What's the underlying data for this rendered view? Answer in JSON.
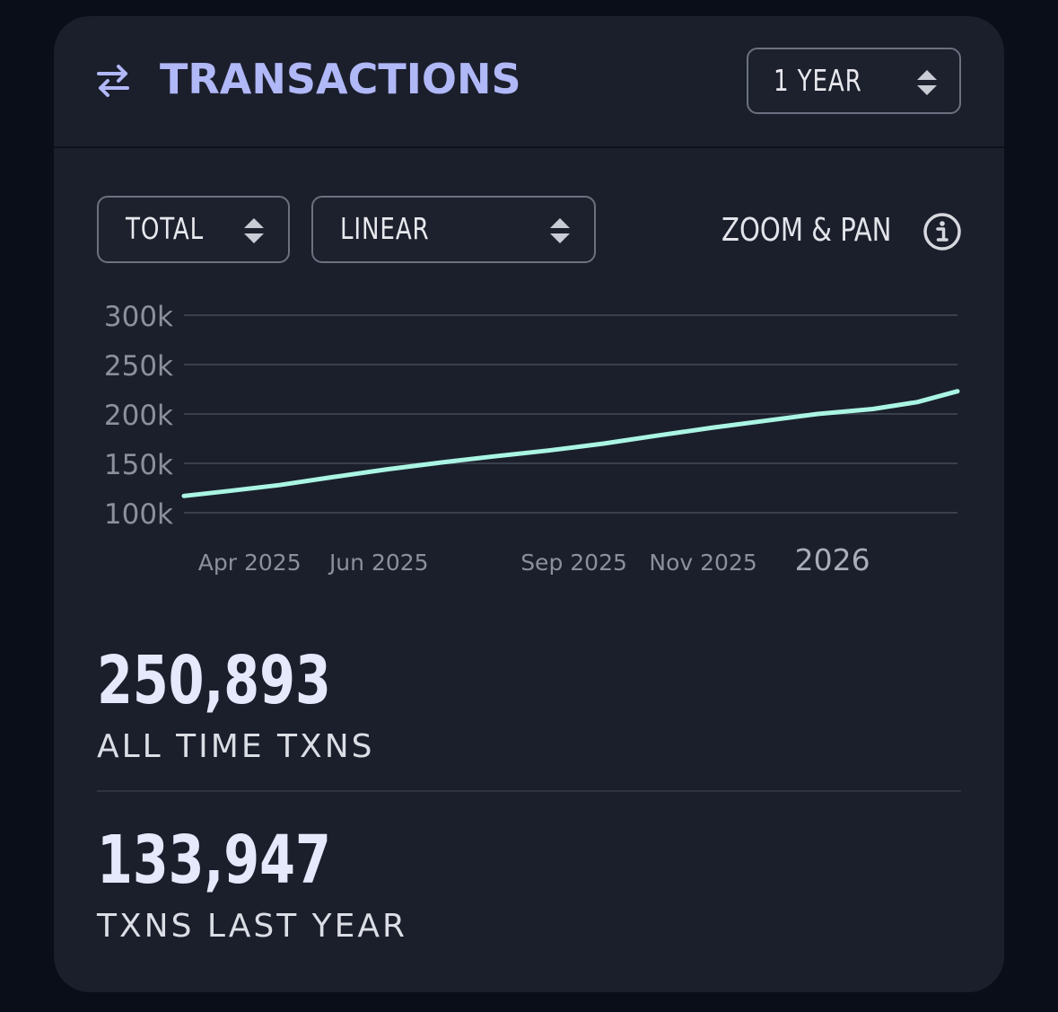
{
  "header": {
    "title": "TRANSACTIONS",
    "range_select": "1 YEAR"
  },
  "controls": {
    "mode_select": "TOTAL",
    "scale_select": "LINEAR",
    "zoom_label": "ZOOM & PAN"
  },
  "colors": {
    "card_bg": "#1b1f2c",
    "accent": "#b1b8f7",
    "line": "#aaf5e4"
  },
  "icons": {
    "title": "swap-arrows-icon",
    "select": "sort-updown-icon",
    "info": "info-icon"
  },
  "chart_data": {
    "type": "line",
    "y_tick_labels": [
      "300k",
      "250k",
      "200k",
      "150k",
      "100k"
    ],
    "y_ticks": [
      300000,
      250000,
      200000,
      150000,
      100000
    ],
    "ylim": [
      100000,
      300000
    ],
    "x_tick_labels": [
      "Apr 2025",
      "Jun 2025",
      "Sep 2025",
      "Nov 2025",
      "2026"
    ],
    "x_tick_dates": [
      "2025-04-01",
      "2025-06-01",
      "2025-09-01",
      "2025-11-01",
      "2026-01-01"
    ],
    "xlim": [
      "2025-03-01",
      "2026-03-01"
    ],
    "grid": true,
    "series": [
      {
        "x": [
          "2025-03-01",
          "2025-03-22",
          "2025-04-15",
          "2025-05-10",
          "2025-06-05",
          "2025-07-01",
          "2025-07-25",
          "2025-08-20",
          "2025-09-15",
          "2025-10-10",
          "2025-11-05",
          "2025-11-30",
          "2025-12-25",
          "2026-01-20",
          "2026-02-10",
          "2026-03-01"
        ],
        "values": [
          117000,
          122000,
          128000,
          136000,
          144000,
          151000,
          157000,
          163000,
          170000,
          178000,
          186000,
          193000,
          200000,
          205000,
          212000,
          223000
        ]
      }
    ]
  },
  "stats": [
    {
      "value": "250,893",
      "label": "ALL TIME TXNS"
    },
    {
      "value": "133,947",
      "label": "TXNS LAST YEAR"
    }
  ]
}
